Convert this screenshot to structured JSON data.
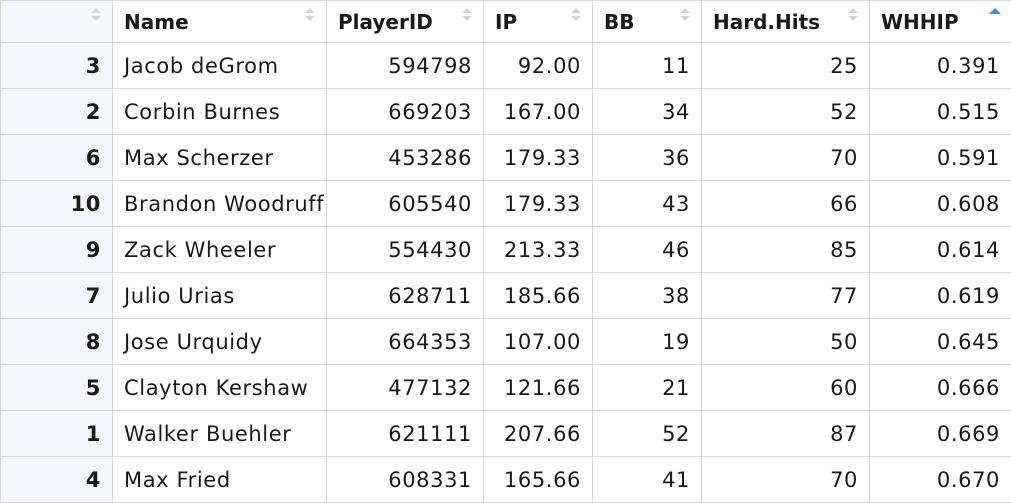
{
  "columns": [
    {
      "label": "",
      "sort": "none"
    },
    {
      "label": "Name",
      "sort": "none"
    },
    {
      "label": "PlayerID",
      "sort": "none"
    },
    {
      "label": "IP",
      "sort": "none"
    },
    {
      "label": "BB",
      "sort": "none"
    },
    {
      "label": "Hard.Hits",
      "sort": "none"
    },
    {
      "label": "WHHIP",
      "sort": "ascending"
    }
  ],
  "sort_indicator_color": "#3a8ee6",
  "rows": [
    {
      "row": "3",
      "name": "Jacob deGrom",
      "player_id": "594798",
      "ip": "92.00",
      "bb": "11",
      "hard_hits": "25",
      "whhip": "0.391"
    },
    {
      "row": "2",
      "name": "Corbin Burnes",
      "player_id": "669203",
      "ip": "167.00",
      "bb": "34",
      "hard_hits": "52",
      "whhip": "0.515"
    },
    {
      "row": "6",
      "name": "Max Scherzer",
      "player_id": "453286",
      "ip": "179.33",
      "bb": "36",
      "hard_hits": "70",
      "whhip": "0.591"
    },
    {
      "row": "10",
      "name": "Brandon Woodruff",
      "player_id": "605540",
      "ip": "179.33",
      "bb": "43",
      "hard_hits": "66",
      "whhip": "0.608"
    },
    {
      "row": "9",
      "name": "Zack Wheeler",
      "player_id": "554430",
      "ip": "213.33",
      "bb": "46",
      "hard_hits": "85",
      "whhip": "0.614"
    },
    {
      "row": "7",
      "name": "Julio Urias",
      "player_id": "628711",
      "ip": "185.66",
      "bb": "38",
      "hard_hits": "77",
      "whhip": "0.619"
    },
    {
      "row": "8",
      "name": "Jose Urquidy",
      "player_id": "664353",
      "ip": "107.00",
      "bb": "19",
      "hard_hits": "50",
      "whhip": "0.645"
    },
    {
      "row": "5",
      "name": "Clayton Kershaw",
      "player_id": "477132",
      "ip": "121.66",
      "bb": "21",
      "hard_hits": "60",
      "whhip": "0.666"
    },
    {
      "row": "1",
      "name": "Walker Buehler",
      "player_id": "621111",
      "ip": "207.66",
      "bb": "52",
      "hard_hits": "87",
      "whhip": "0.669"
    },
    {
      "row": "4",
      "name": "Max Fried",
      "player_id": "608331",
      "ip": "165.66",
      "bb": "41",
      "hard_hits": "70",
      "whhip": "0.670"
    }
  ]
}
